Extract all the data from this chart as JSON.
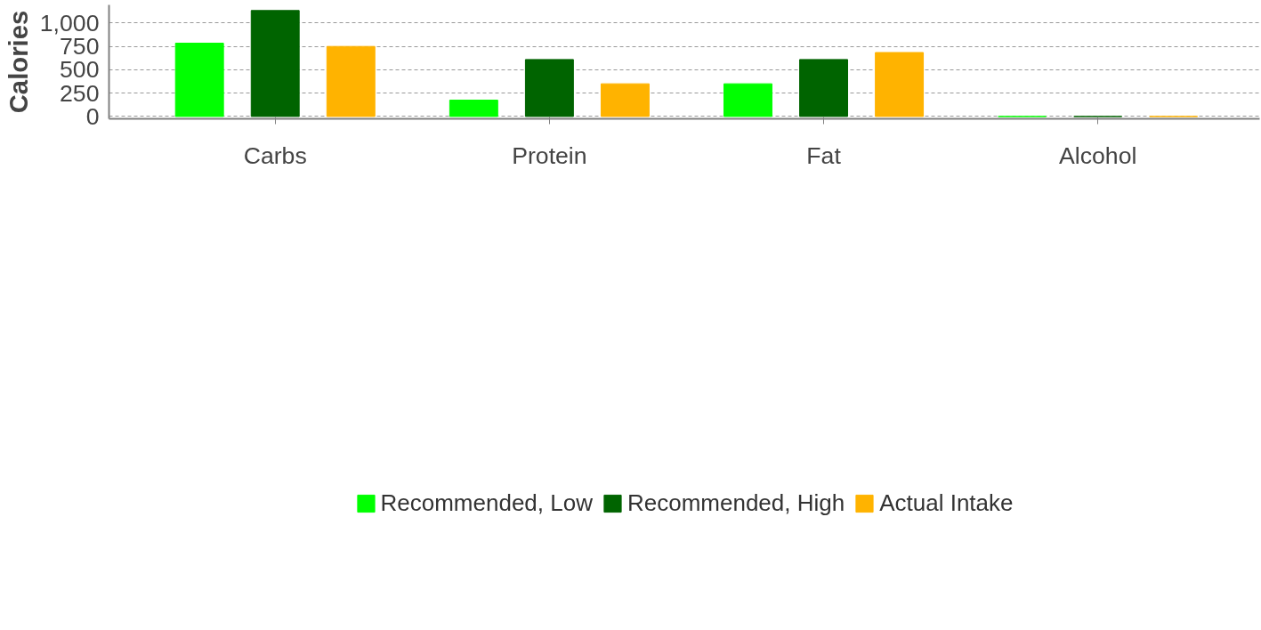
{
  "chart_data": {
    "type": "bar",
    "ylabel": "Calories",
    "categories": [
      "Carbs",
      "Protein",
      "Fat",
      "Alcohol"
    ],
    "series": [
      {
        "name": "Recommended, Low",
        "color": "#00ff00",
        "values": [
          785,
          175,
          350,
          0
        ]
      },
      {
        "name": "Recommended, High",
        "color": "#006400",
        "values": [
          1135,
          610,
          610,
          0
        ]
      },
      {
        "name": "Actual Intake",
        "color": "#ffb300",
        "values": [
          750,
          350,
          685,
          0
        ]
      }
    ],
    "ylim": [
      -25,
      1195
    ],
    "yticks": [
      0,
      250,
      500,
      750,
      {
        "value": 1000,
        "label": "1,000"
      }
    ],
    "grid": "y",
    "legend": "bottom"
  }
}
